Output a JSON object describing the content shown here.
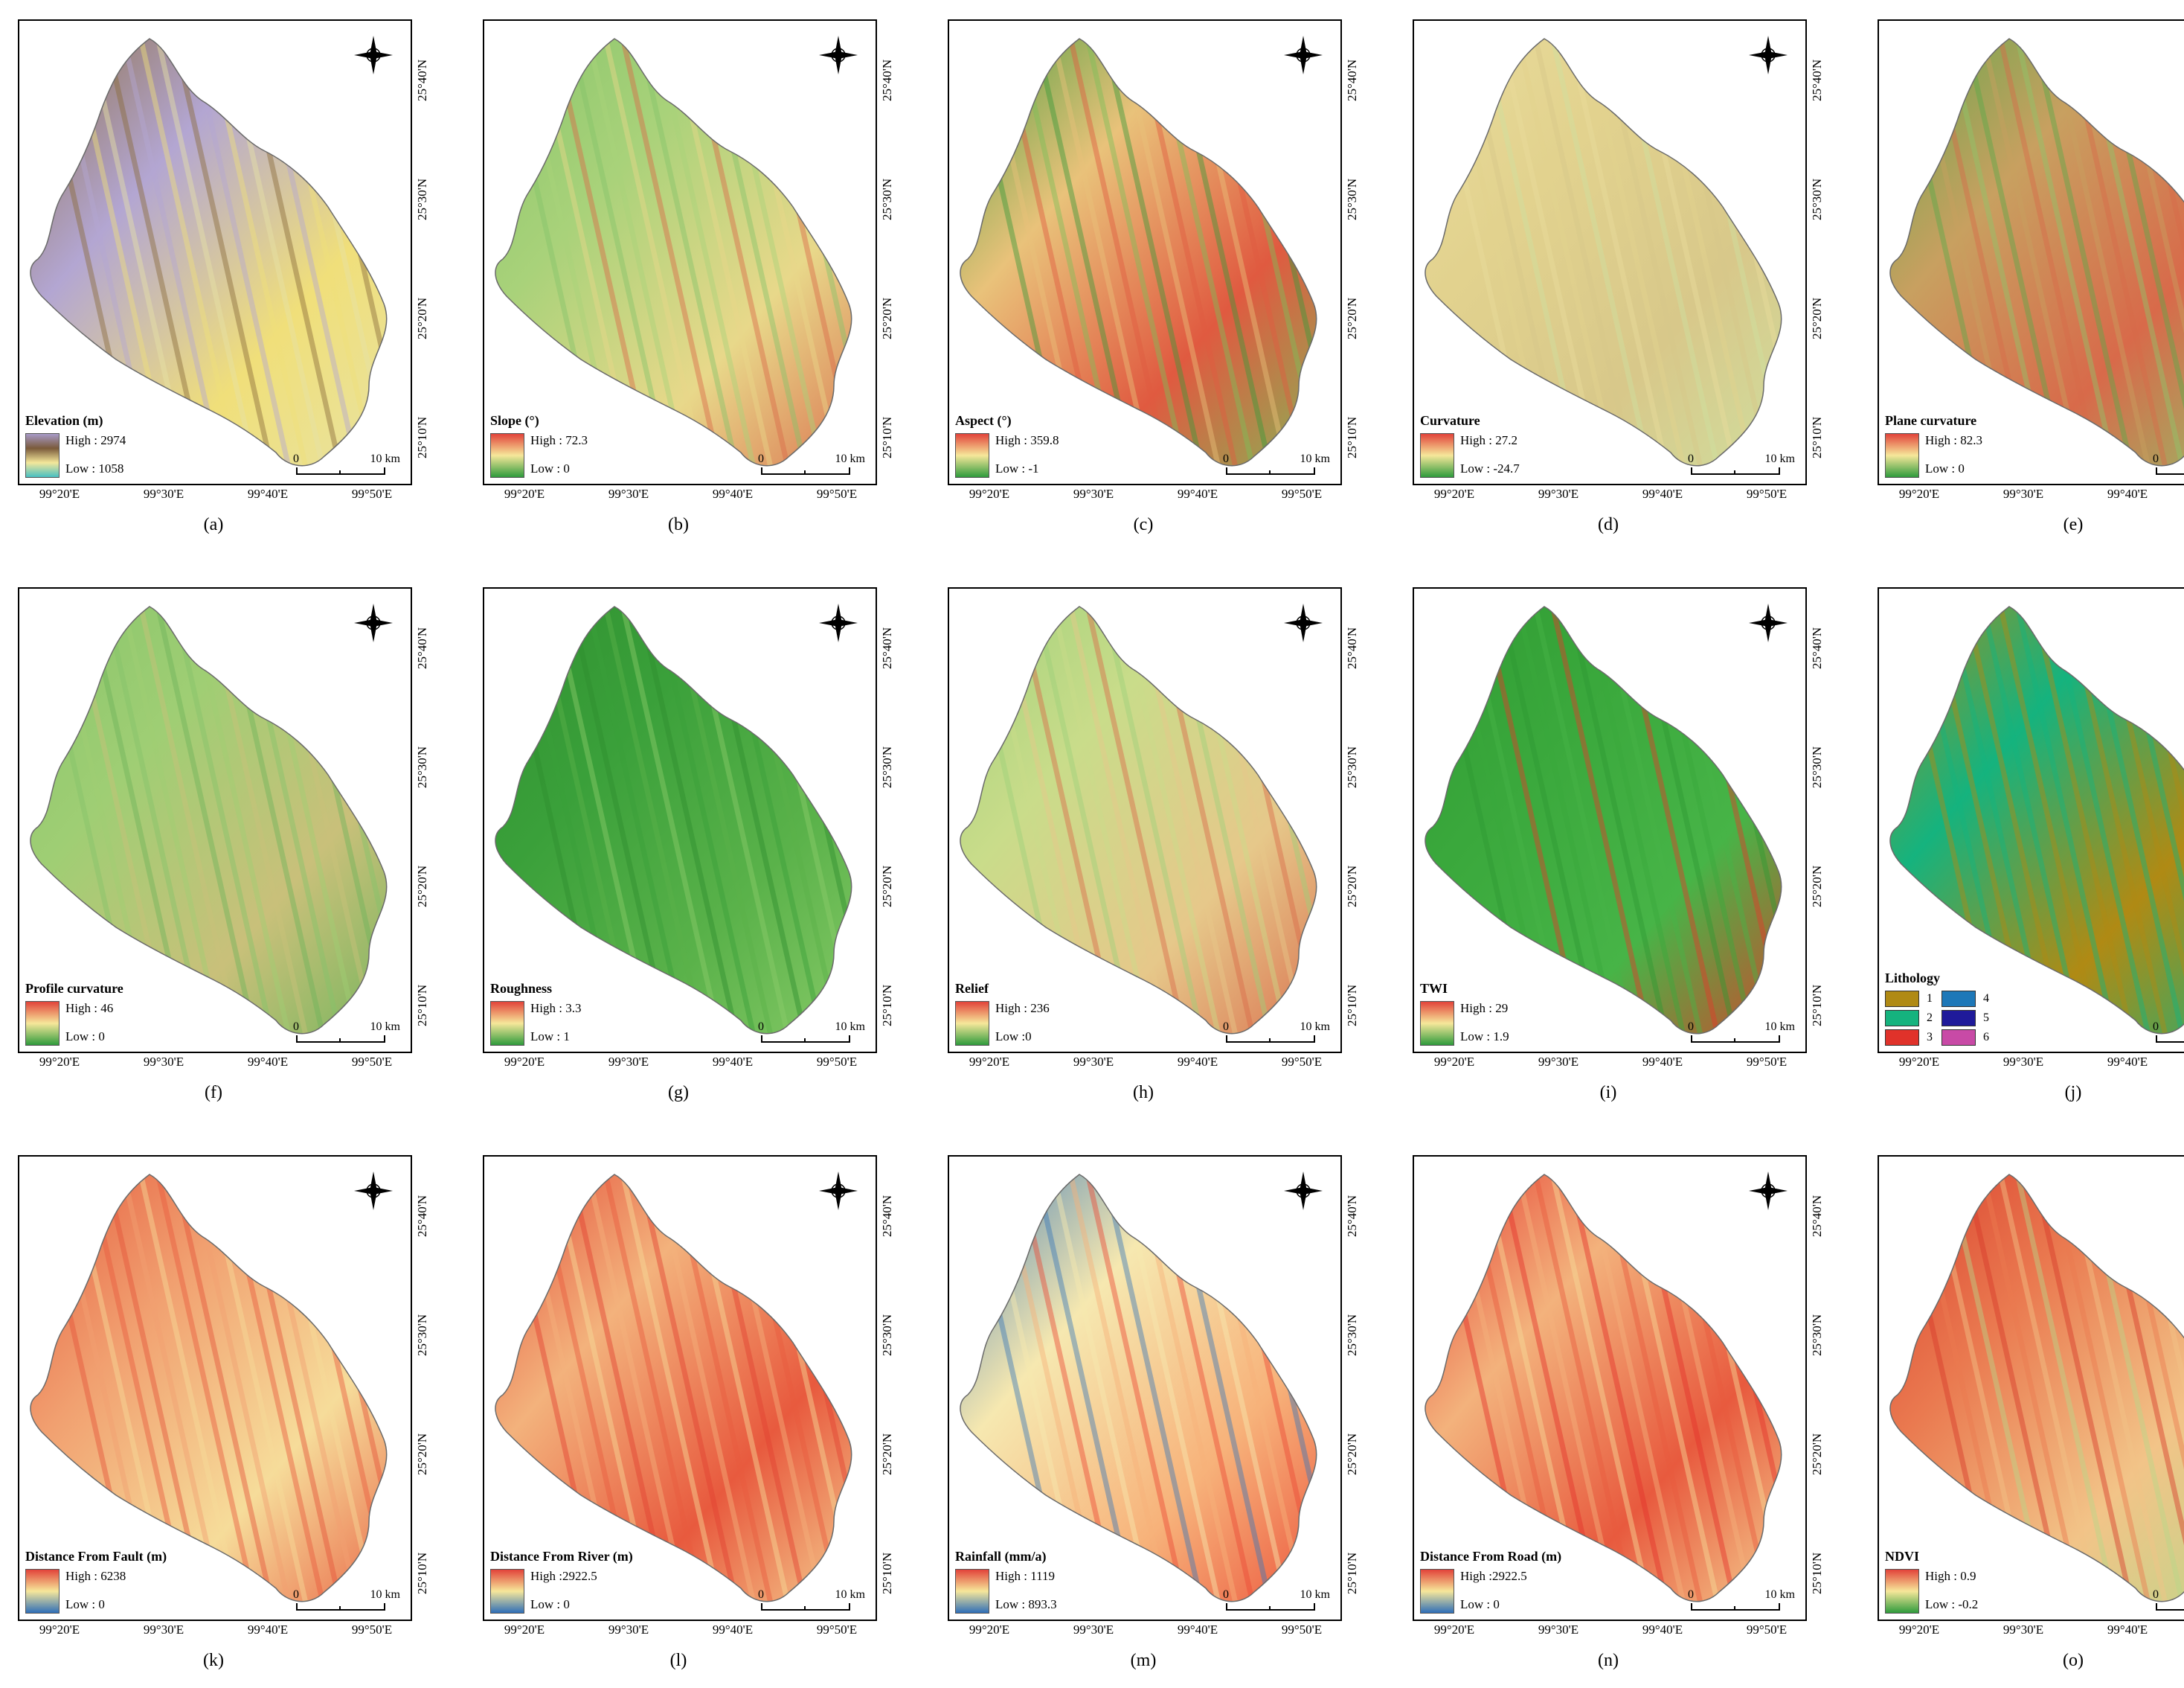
{
  "figure": {
    "lon_labels": [
      "99°20'E",
      "99°30'E",
      "99°40'E",
      "99°50'E"
    ],
    "lat_labels": [
      "25°40'N",
      "25°30'N",
      "25°20'N",
      "25°10'N"
    ],
    "scale_zero": "0",
    "scale_distance": "10 km"
  },
  "panels": [
    {
      "id": "a",
      "caption": "(a)",
      "title": "Elevation (m)",
      "type": "gradient",
      "high": "High : 2974",
      "low": "Low : 1058",
      "colors": [
        "#a79ac8",
        "#7a5a3a",
        "#f4e79a",
        "#49c0c2"
      ],
      "map_palette": [
        "#8a6a3a",
        "#b3a6d2",
        "#f0df7a",
        "#e7e3a6"
      ]
    },
    {
      "id": "b",
      "caption": "(b)",
      "title": "Slope (°)",
      "type": "gradient",
      "high": "High : 72.3",
      "low": "Low : 0",
      "colors": [
        "#e2433a",
        "#f6e79a",
        "#2f9b3c"
      ],
      "map_palette": [
        "#86c46a",
        "#a9d27a",
        "#e8d88a",
        "#d96a4a"
      ]
    },
    {
      "id": "c",
      "caption": "(c)",
      "title": "Aspect (°)",
      "type": "gradient",
      "high": "High : 359.8",
      "low": "Low : -1",
      "colors": [
        "#e2433a",
        "#f6e79a",
        "#2f9b3c"
      ],
      "map_palette": [
        "#3a9a3a",
        "#e9c27a",
        "#e05a40",
        "#7cbf58"
      ]
    },
    {
      "id": "d",
      "caption": "(d)",
      "title": "Curvature",
      "type": "gradient",
      "high": "High :  27.2",
      "low": "Low : -24.7",
      "colors": [
        "#e2433a",
        "#f6e79a",
        "#2f9b3c"
      ],
      "map_palette": [
        "#e9dc9c",
        "#e2d28e",
        "#d8c88a",
        "#cfe0a0"
      ]
    },
    {
      "id": "e",
      "caption": "(e)",
      "title": "Plane curvature",
      "type": "gradient",
      "high": "High : 82.3",
      "low": "Low : 0",
      "colors": [
        "#e2433a",
        "#f6e79a",
        "#2f9b3c"
      ],
      "map_palette": [
        "#5aa84a",
        "#c8a060",
        "#d86a4a",
        "#8ec66a"
      ]
    },
    {
      "id": "f",
      "caption": "(f)",
      "title": "Profile curvature",
      "type": "gradient",
      "high": "High : 46",
      "low": "Low : 0",
      "colors": [
        "#e2433a",
        "#f6e79a",
        "#2f9b3c"
      ],
      "map_palette": [
        "#86c46a",
        "#9fce74",
        "#c9c07a",
        "#6eb45a"
      ]
    },
    {
      "id": "g",
      "caption": "(g)",
      "title": "Roughness",
      "type": "gradient",
      "high": "High : 3.3",
      "low": "Low : 1",
      "colors": [
        "#e2433a",
        "#f6e79a",
        "#2f9b3c"
      ],
      "map_palette": [
        "#2f8f2f",
        "#3aa03a",
        "#5ab24a",
        "#8ccc6a"
      ]
    },
    {
      "id": "h",
      "caption": "(h)",
      "title": "Relief",
      "type": "gradient",
      "high": "High : 236",
      "low": "Low :0",
      "colors": [
        "#e2433a",
        "#f6e79a",
        "#2f9b3c"
      ],
      "map_palette": [
        "#9ed07a",
        "#c9dc8a",
        "#e6c88a",
        "#d96a4a"
      ]
    },
    {
      "id": "i",
      "caption": "(i)",
      "title": "TWI",
      "type": "gradient",
      "high": "High : 29",
      "low": "Low : 1.9",
      "colors": [
        "#e2433a",
        "#f6e79a",
        "#2f9b3c"
      ],
      "map_palette": [
        "#2f9a32",
        "#3aa83c",
        "#47b447",
        "#e23a2a"
      ]
    },
    {
      "id": "j",
      "caption": "(j)",
      "title": "Lithology",
      "type": "lithology",
      "classes": [
        {
          "label": "1",
          "color": "#b08a14"
        },
        {
          "label": "4",
          "color": "#1e78b8"
        },
        {
          "label": "2",
          "color": "#15b37e"
        },
        {
          "label": "5",
          "color": "#1f1a9a"
        },
        {
          "label": "3",
          "color": "#e0322a"
        },
        {
          "label": "6",
          "color": "#c84aa6"
        }
      ],
      "map_palette": [
        "#b08a14",
        "#15b37e",
        "#b08a14",
        "#15b37e"
      ]
    },
    {
      "id": "k",
      "caption": "(k)",
      "title": "Distance From Fault (m)",
      "type": "gradient",
      "high": "High : 6238",
      "low": "Low : 0",
      "colors": [
        "#e2433a",
        "#f6e79a",
        "#2f6fb8"
      ],
      "map_palette": [
        "#e4553a",
        "#f1a070",
        "#f6dc9a",
        "#e85a3e"
      ]
    },
    {
      "id": "l",
      "caption": "(l)",
      "title": "Distance From River (m)",
      "type": "gradient",
      "high": "High :2922.5",
      "low": "Low : 0",
      "colors": [
        "#e2433a",
        "#f6e79a",
        "#2f6fb8"
      ],
      "map_palette": [
        "#e24030",
        "#f3b27c",
        "#e85a3e",
        "#f6dc9a"
      ]
    },
    {
      "id": "m",
      "caption": "(m)",
      "title": "Rainfall (mm/a)",
      "type": "gradient",
      "high": "High : 1119",
      "low": "Low : 893.3",
      "colors": [
        "#e2433a",
        "#f6e79a",
        "#2f6fb8"
      ],
      "map_palette": [
        "#3a78b8",
        "#f6e8b0",
        "#f7b27a",
        "#ea4a35"
      ]
    },
    {
      "id": "n",
      "caption": "(n)",
      "title": "Distance From Road (m)",
      "type": "gradient",
      "high": "High :2922.5",
      "low": "Low : 0",
      "colors": [
        "#e2433a",
        "#f6e79a",
        "#2f6fb8"
      ],
      "map_palette": [
        "#e4302a",
        "#f3b27c",
        "#e85a3e",
        "#f6dc9a"
      ]
    },
    {
      "id": "o",
      "caption": "(o)",
      "title": "NDVI",
      "type": "gradient",
      "high": "High : 0.9",
      "low": "Low : -0.2",
      "colors": [
        "#e2433a",
        "#f6e79a",
        "#2f9b3c"
      ],
      "map_palette": [
        "#d83a2a",
        "#ea7a50",
        "#f2c488",
        "#b7d88a"
      ]
    }
  ]
}
